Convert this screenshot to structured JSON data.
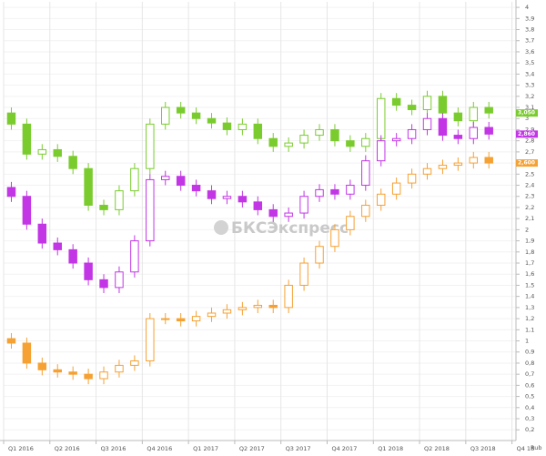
{
  "chart_data": {
    "type": "candlestick",
    "watermark": "БКСЭкспресс",
    "y_unit": "Rub",
    "xlim": [
      -0.5,
      32.7
    ],
    "xticks": [
      {
        "value": -0.5,
        "label": "Q1 2016"
      },
      {
        "value": 2.5,
        "label": "Q2 2016"
      },
      {
        "value": 5.5,
        "label": "Q3 2016"
      },
      {
        "value": 8.5,
        "label": "Q4 2016"
      },
      {
        "value": 11.5,
        "label": "Q1 2017"
      },
      {
        "value": 14.5,
        "label": "Q2 2017"
      },
      {
        "value": 17.5,
        "label": "Q3 2017"
      },
      {
        "value": 20.5,
        "label": "Q4 2017"
      },
      {
        "value": 23.5,
        "label": "Q1 2018"
      },
      {
        "value": 26.5,
        "label": "Q2 2018"
      },
      {
        "value": 29.5,
        "label": "Q3 2018"
      },
      {
        "value": 32.5,
        "label": "Q4 18"
      }
    ],
    "ylim": [
      0.12,
      4.05
    ],
    "yticks": [
      4,
      {
        "value": 3.9,
        "label": "3,9"
      },
      {
        "value": 3.8,
        "label": "3,8"
      },
      {
        "value": 3.7,
        "label": "3,7"
      },
      {
        "value": 3.6,
        "label": "3,6"
      },
      {
        "value": 3.5,
        "label": "3,5"
      },
      {
        "value": 3.4,
        "label": "3,4"
      },
      {
        "value": 3.3,
        "label": "3,3"
      },
      {
        "value": 3.2,
        "label": "3,2"
      },
      {
        "value": 3.1,
        "label": "3,1"
      },
      3,
      {
        "value": 2.9,
        "label": "2,9"
      },
      {
        "value": 2.8,
        "label": "2,8"
      },
      {
        "value": 2.7,
        "label": "2,7"
      },
      {
        "value": 2.6,
        "label": "2,6"
      },
      {
        "value": 2.5,
        "label": "2,5"
      },
      {
        "value": 2.4,
        "label": "2,4"
      },
      {
        "value": 2.3,
        "label": "2,3"
      },
      {
        "value": 2.2,
        "label": "2,2"
      },
      {
        "value": 2.1,
        "label": "2,1"
      },
      2,
      {
        "value": 1.9,
        "label": "1,9"
      },
      {
        "value": 1.8,
        "label": "1,8"
      },
      {
        "value": 1.7,
        "label": "1,7"
      },
      {
        "value": 1.6,
        "label": "1,6"
      },
      {
        "value": 1.5,
        "label": "1,5"
      },
      {
        "value": 1.4,
        "label": "1,4"
      },
      {
        "value": 1.3,
        "label": "1,3"
      },
      {
        "value": 1.2,
        "label": "1,2"
      },
      {
        "value": 1.1,
        "label": "1,1"
      },
      1,
      {
        "value": 0.9,
        "label": "0,9"
      },
      {
        "value": 0.8,
        "label": "0,8"
      },
      {
        "value": 0.7,
        "label": "0,7"
      },
      {
        "value": 0.6,
        "label": "0,6"
      },
      {
        "value": 0.5,
        "label": "0,5"
      },
      {
        "value": 0.4,
        "label": "0,4"
      },
      {
        "value": 0.3,
        "label": "0,3"
      },
      {
        "value": 0.2,
        "label": "0,2"
      }
    ],
    "grid": true,
    "series": [
      {
        "color": "#7acc2e",
        "open": [
          3.05,
          2.95,
          2.68,
          2.72,
          2.66,
          2.55,
          2.22,
          2.18,
          2.35,
          2.55,
          2.95,
          3.1,
          3.05,
          3.0,
          2.96,
          2.9,
          2.95,
          2.82,
          2.75,
          2.78,
          2.85,
          2.9,
          2.8,
          2.75,
          2.82,
          3.18,
          3.12,
          3.08,
          3.2,
          3.05,
          2.98,
          3.1
        ],
        "high": [
          3.1,
          3.0,
          2.77,
          2.77,
          2.71,
          2.6,
          2.27,
          2.4,
          2.6,
          3.0,
          3.15,
          3.15,
          3.1,
          3.05,
          3.01,
          3.0,
          3.0,
          2.87,
          2.83,
          2.9,
          2.95,
          2.95,
          2.85,
          2.87,
          3.23,
          3.23,
          3.17,
          3.25,
          3.25,
          3.1,
          3.15,
          3.15
        ],
        "low": [
          2.9,
          2.63,
          2.63,
          2.61,
          2.5,
          2.17,
          2.13,
          2.13,
          2.3,
          2.5,
          2.9,
          3.0,
          2.95,
          2.91,
          2.85,
          2.85,
          2.77,
          2.7,
          2.7,
          2.73,
          2.8,
          2.75,
          2.7,
          2.7,
          2.77,
          3.07,
          3.03,
          3.03,
          3.0,
          2.93,
          2.93,
          3.0
        ],
        "close": [
          2.95,
          2.68,
          2.72,
          2.66,
          2.55,
          2.22,
          2.18,
          2.35,
          2.55,
          2.95,
          3.1,
          3.05,
          3.0,
          2.96,
          2.9,
          2.95,
          2.82,
          2.75,
          2.78,
          2.85,
          2.9,
          2.8,
          2.75,
          2.82,
          3.18,
          3.12,
          3.08,
          3.2,
          3.05,
          2.98,
          3.1,
          3.05
        ],
        "last": {
          "value": 3.05,
          "label": "3,050"
        }
      },
      {
        "color": "#c236e6",
        "open": [
          2.38,
          2.3,
          2.05,
          1.88,
          1.82,
          1.7,
          1.55,
          1.48,
          1.62,
          1.9,
          2.45,
          2.48,
          2.4,
          2.35,
          2.28,
          2.3,
          2.25,
          2.18,
          2.12,
          2.15,
          2.3,
          2.36,
          2.32,
          2.4,
          2.62,
          2.8,
          2.82,
          2.9,
          3.0,
          2.85,
          2.82,
          2.92
        ],
        "high": [
          2.43,
          2.35,
          2.1,
          1.93,
          1.87,
          1.75,
          1.6,
          1.67,
          1.95,
          2.5,
          2.53,
          2.53,
          2.45,
          2.4,
          2.35,
          2.35,
          2.3,
          2.23,
          2.2,
          2.35,
          2.41,
          2.41,
          2.45,
          2.67,
          2.85,
          2.87,
          2.95,
          3.05,
          3.05,
          2.9,
          2.97,
          2.97
        ],
        "low": [
          2.25,
          2.0,
          1.83,
          1.77,
          1.65,
          1.5,
          1.43,
          1.43,
          1.57,
          1.85,
          2.4,
          2.35,
          2.3,
          2.23,
          2.23,
          2.2,
          2.13,
          2.07,
          2.07,
          2.1,
          2.25,
          2.27,
          2.27,
          2.35,
          2.57,
          2.75,
          2.77,
          2.85,
          2.8,
          2.77,
          2.77,
          2.81
        ],
        "close": [
          2.3,
          2.05,
          1.88,
          1.82,
          1.7,
          1.55,
          1.48,
          1.62,
          1.9,
          2.45,
          2.48,
          2.4,
          2.35,
          2.28,
          2.3,
          2.25,
          2.18,
          2.12,
          2.15,
          2.3,
          2.36,
          2.32,
          2.4,
          2.62,
          2.8,
          2.82,
          2.9,
          3.0,
          2.85,
          2.82,
          2.92,
          2.86
        ],
        "last": {
          "value": 2.86,
          "label": "2,860"
        }
      },
      {
        "color": "#f5a133",
        "open": [
          1.02,
          0.98,
          0.8,
          0.74,
          0.72,
          0.7,
          0.66,
          0.72,
          0.78,
          0.82,
          1.2,
          1.2,
          1.18,
          1.22,
          1.25,
          1.28,
          1.3,
          1.32,
          1.3,
          1.5,
          1.7,
          1.85,
          2.0,
          2.12,
          2.22,
          2.32,
          2.42,
          2.5,
          2.55,
          2.58,
          2.6,
          2.65
        ],
        "high": [
          1.07,
          1.03,
          0.85,
          0.79,
          0.77,
          0.75,
          0.77,
          0.83,
          0.87,
          1.25,
          1.25,
          1.25,
          1.27,
          1.3,
          1.33,
          1.35,
          1.37,
          1.37,
          1.55,
          1.75,
          1.9,
          2.05,
          2.17,
          2.27,
          2.37,
          2.47,
          2.55,
          2.6,
          2.63,
          2.65,
          2.7,
          2.7
        ],
        "low": [
          0.93,
          0.75,
          0.69,
          0.67,
          0.65,
          0.61,
          0.61,
          0.67,
          0.73,
          0.77,
          1.15,
          1.13,
          1.13,
          1.17,
          1.2,
          1.23,
          1.25,
          1.25,
          1.25,
          1.45,
          1.65,
          1.8,
          1.95,
          2.07,
          2.17,
          2.27,
          2.37,
          2.45,
          2.5,
          2.53,
          2.55,
          2.55
        ],
        "close": [
          0.98,
          0.8,
          0.74,
          0.72,
          0.7,
          0.66,
          0.72,
          0.78,
          0.82,
          1.2,
          1.2,
          1.18,
          1.22,
          1.25,
          1.28,
          1.3,
          1.32,
          1.3,
          1.5,
          1.7,
          1.85,
          2.0,
          2.12,
          2.22,
          2.32,
          2.42,
          2.5,
          2.55,
          2.58,
          2.6,
          2.65,
          2.6
        ],
        "last": {
          "value": 2.6,
          "label": "2,600"
        }
      }
    ]
  }
}
